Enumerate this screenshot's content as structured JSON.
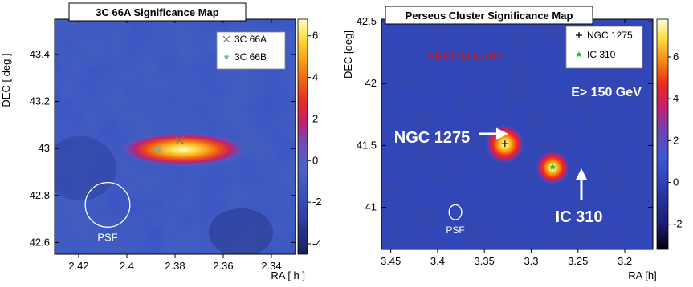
{
  "chart_data": [
    {
      "type": "heatmap",
      "title": "3C 66A Significance Map",
      "xlabel": "RA  [ h ]",
      "ylabel": "DEC [ deg ]",
      "xlim": [
        2.43,
        2.33
      ],
      "ylim": [
        42.55,
        43.55
      ],
      "xticks": [
        2.42,
        2.4,
        2.38,
        2.36,
        2.34
      ],
      "yticks": [
        42.6,
        42.8,
        43.0,
        43.2,
        43.4
      ],
      "xtick_labels": [
        "2.42",
        "2.4",
        "2.38",
        "2.36",
        "2.34"
      ],
      "ytick_labels": [
        "42.6",
        "42.8",
        "43",
        "43.2",
        "43.4"
      ],
      "colorbar": {
        "range": [
          -4.5,
          6.8
        ],
        "ticks": [
          6,
          4,
          2,
          0,
          -2,
          -4
        ],
        "tick_labels": [
          "6",
          "4",
          "2",
          "0",
          "-2",
          "-4"
        ]
      },
      "colorscale": [
        "#1a1f5a",
        "#2e3fa8",
        "#4a63cc",
        "#6a4fb8",
        "#c0206f",
        "#e8301f",
        "#f07f10",
        "#ffd230",
        "#ffffc8"
      ],
      "peaks": [
        {
          "ra": 2.378,
          "dec": 43.03,
          "significance": 6.5,
          "ra_sigma": 0.0085,
          "dec_sigma": 0.075
        }
      ],
      "sources": [
        {
          "name": "3C 66A",
          "ra": 2.378,
          "dec": 43.035,
          "marker": "x",
          "color": "#6b7b6b"
        },
        {
          "name": "3C 66B",
          "ra": 2.387,
          "dec": 42.995,
          "marker": "star",
          "color": "#6fb8a8"
        }
      ],
      "psf": {
        "label": "PSF",
        "ra": 2.408,
        "dec": 42.76,
        "radius_deg": 0.095
      },
      "legend": "top-right"
    },
    {
      "type": "heatmap",
      "title": "Perseus Cluster Significance Map",
      "xlabel": "RA [h]",
      "ylabel": "DEC [deg]",
      "xlim": [
        3.46,
        3.17
      ],
      "ylim": [
        40.66,
        42.52
      ],
      "xticks": [
        3.45,
        3.4,
        3.35,
        3.3,
        3.25,
        3.2
      ],
      "yticks": [
        41.0,
        41.5,
        42.0,
        42.5
      ],
      "xtick_labels": [
        "3.45",
        "3.4",
        "3.35",
        "3.3",
        "3.25",
        "3.2"
      ],
      "ytick_labels": [
        "41",
        "41.5",
        "42",
        "42.5"
      ],
      "colorbar": {
        "range": [
          -3.2,
          7.8
        ],
        "ticks": [
          6,
          4,
          2,
          0,
          -2
        ],
        "tick_labels": [
          "6",
          "4",
          "2",
          "0",
          "-2"
        ]
      },
      "colorscale": [
        "#000000",
        "#1a1a70",
        "#2a39a8",
        "#3f57d4",
        "#7040b0",
        "#c81e6e",
        "#ee2a1a",
        "#f88a10",
        "#ffe040",
        "#ffffe0"
      ],
      "peaks": [
        {
          "ra": 3.328,
          "dec": 41.51,
          "significance": 7.3,
          "sigma": 0.0075
        },
        {
          "ra": 3.277,
          "dec": 41.32,
          "significance": 6.0,
          "sigma": 0.0065
        }
      ],
      "sources": [
        {
          "name": "NGC 1275",
          "ra": 3.328,
          "dec": 41.515,
          "marker": "+",
          "color": "#000000"
        },
        {
          "name": "IC 310",
          "ra": 3.277,
          "dec": 41.325,
          "marker": "star",
          "color": "#22c040"
        }
      ],
      "annotations": [
        {
          "text": "PRELIMINARY",
          "color": "#c8141e"
        },
        {
          "text": "E> 150 GeV",
          "color": "#ffffff"
        },
        {
          "text": "NGC 1275",
          "color": "#ffffff",
          "arrow": "right"
        },
        {
          "text": "IC 310",
          "color": "#ffffff",
          "arrow": "up"
        }
      ],
      "psf": {
        "label": "PSF",
        "ra": 3.381,
        "dec": 40.96,
        "radius_deg": 0.06
      },
      "legend": "top-right"
    }
  ]
}
